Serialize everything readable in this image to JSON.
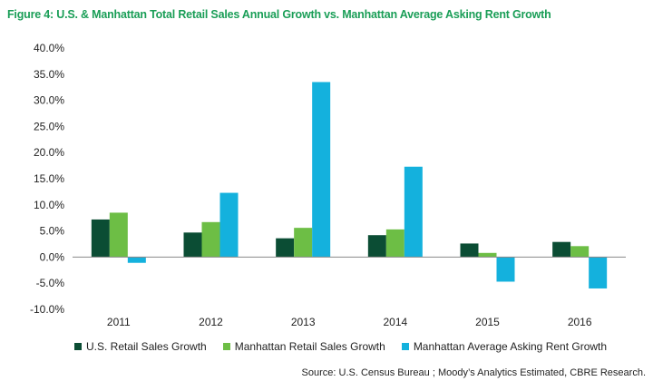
{
  "title": "Figure 4: U.S. & Manhattan Total Retail Sales Annual Growth vs. Manhattan Average Asking Rent Growth",
  "source": "Source: U.S. Census Bureau ; Moody’s Analytics Estimated, CBRE Research.",
  "chart_data": {
    "type": "bar",
    "title": "Figure 4: U.S. & Manhattan Total Retail Sales Annual Growth vs. Manhattan Average Asking Rent Growth",
    "categories": [
      "2011",
      "2012",
      "2013",
      "2014",
      "2015",
      "2016"
    ],
    "series": [
      {
        "name": "U.S.  Retail Sales Growth",
        "color": "#0b4d34",
        "values": [
          7.2,
          4.7,
          3.6,
          4.2,
          2.6,
          2.9
        ]
      },
      {
        "name": "Manhattan  Retail Sales Growth",
        "color": "#6dbe45",
        "values": [
          8.5,
          6.7,
          5.6,
          5.3,
          0.8,
          2.1
        ]
      },
      {
        "name": "Manhattan  Average Asking Rent Growth",
        "color": "#14b1dd",
        "values": [
          -1.1,
          12.3,
          33.5,
          17.3,
          -4.7,
          -6.0
        ]
      }
    ],
    "ylim": [
      -10,
      40
    ],
    "yticks": [
      "-10.0%",
      "-5.0%",
      "0.0%",
      "5.0%",
      "10.0%",
      "15.0%",
      "20.0%",
      "25.0%",
      "30.0%",
      "35.0%",
      "40.0%"
    ],
    "ytick_values": [
      -10,
      -5,
      0,
      5,
      10,
      15,
      20,
      25,
      30,
      35,
      40
    ],
    "grid": false,
    "legend": "bottom"
  }
}
